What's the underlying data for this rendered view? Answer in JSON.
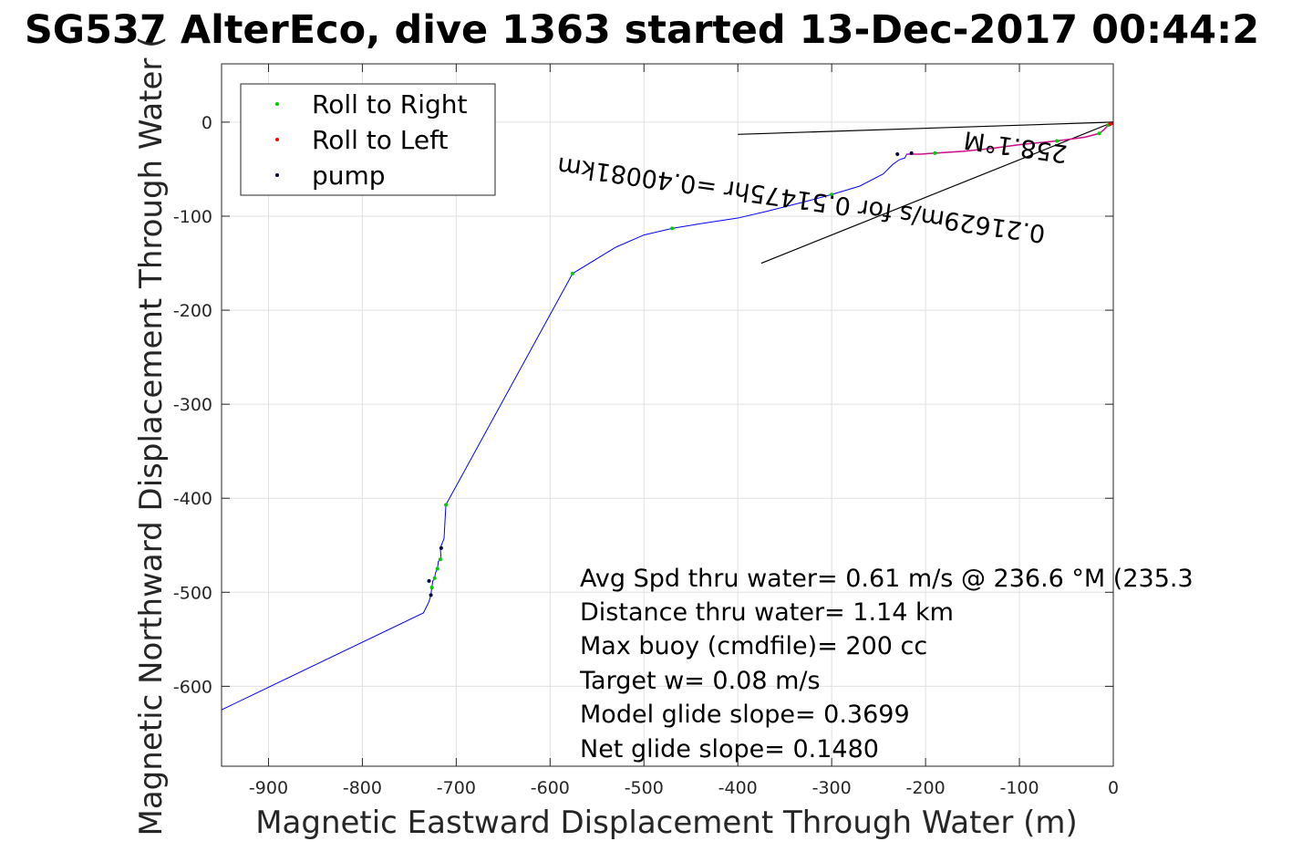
{
  "chart_data": {
    "type": "line",
    "title": "SG537 AlterEco, dive 1363 started 13-Dec-2017 00:44:2",
    "xlabel": "Magnetic Eastward Displacement Through Water (m)",
    "ylabel": "Magnetic Northward Displacement Through Water (",
    "xlim": [
      -950,
      0
    ],
    "ylim": [
      -685,
      62
    ],
    "x_ticks": [
      -900,
      -800,
      -700,
      -600,
      -500,
      -400,
      -300,
      -200,
      -100,
      0
    ],
    "y_ticks": [
      0,
      -100,
      -200,
      -300,
      -400,
      -500,
      -600
    ],
    "grid": true,
    "legend_position": "top-left",
    "legend": [
      "Roll to Right",
      "Roll to Left",
      "pump"
    ],
    "colors": {
      "track": "#0000ff",
      "roll_right": "#00cc00",
      "roll_left": "#ff0000",
      "pump": "#000033",
      "surface_segment": "#cc1188",
      "annotation_line": "#000000",
      "grid": "#e0e0e0"
    },
    "series": [
      {
        "name": "track",
        "x": [
          0,
          -5,
          -10,
          -15,
          -30,
          -60,
          -100,
          -130,
          -160,
          -190,
          -205,
          -220,
          -222,
          -228,
          -235,
          -245,
          -270,
          -300,
          -330,
          -370,
          -400,
          -440,
          -470,
          -500,
          -530,
          -576,
          -711,
          -713,
          -717,
          -716,
          -719,
          -720,
          -722,
          -723,
          -725,
          -726,
          -727,
          -729,
          -735,
          -950
        ],
        "y": [
          0,
          -3,
          -8,
          -12,
          -16,
          -20,
          -24,
          -28,
          -31,
          -33,
          -34,
          -34,
          -38,
          -40,
          -45,
          -55,
          -68,
          -77,
          -85,
          -95,
          -102,
          -108,
          -113,
          -120,
          -133,
          -161,
          -407,
          -443,
          -453,
          -465,
          -467,
          -475,
          -479,
          -485,
          -488,
          -495,
          -503,
          -510,
          -522,
          -625
        ]
      },
      {
        "name": "Roll to Right",
        "x": [
          -5,
          -15,
          -60,
          -190,
          -300,
          -470,
          -576,
          -711,
          -717,
          -720,
          -723,
          -726
        ],
        "y": [
          -3,
          -12,
          -20,
          -33,
          -77,
          -113,
          -161,
          -407,
          -465,
          -475,
          -485,
          -495
        ]
      },
      {
        "name": "Roll to Left",
        "x": [
          -1,
          -3
        ],
        "y": [
          -1,
          -2
        ]
      },
      {
        "name": "pump",
        "x": [
          -716,
          -729,
          -727,
          -230,
          -215
        ],
        "y": [
          -453,
          -488,
          -503,
          -34,
          -33
        ]
      }
    ],
    "annotation_lines": [
      {
        "x": [
          0,
          -400
        ],
        "y": [
          0,
          -13
        ]
      },
      {
        "x": [
          0,
          -375
        ],
        "y": [
          0,
          -150
        ]
      }
    ],
    "rotated_annotation": "0.21629m/s for 0.51475hr =0.40081km",
    "rotated_annotation_2": "258.1°M",
    "rotated_annotation_3": "258.1°M",
    "stats": [
      "Avg Spd thru water=  0.61 m/s @ 236.6 °M (235.3",
      "Distance thru water=  1.14 km",
      "Max buoy (cmdfile)= 200 cc",
      "Target w= 0.08 m/s",
      "Model glide slope= 0.3699",
      "Net glide slope= 0.1480"
    ]
  }
}
